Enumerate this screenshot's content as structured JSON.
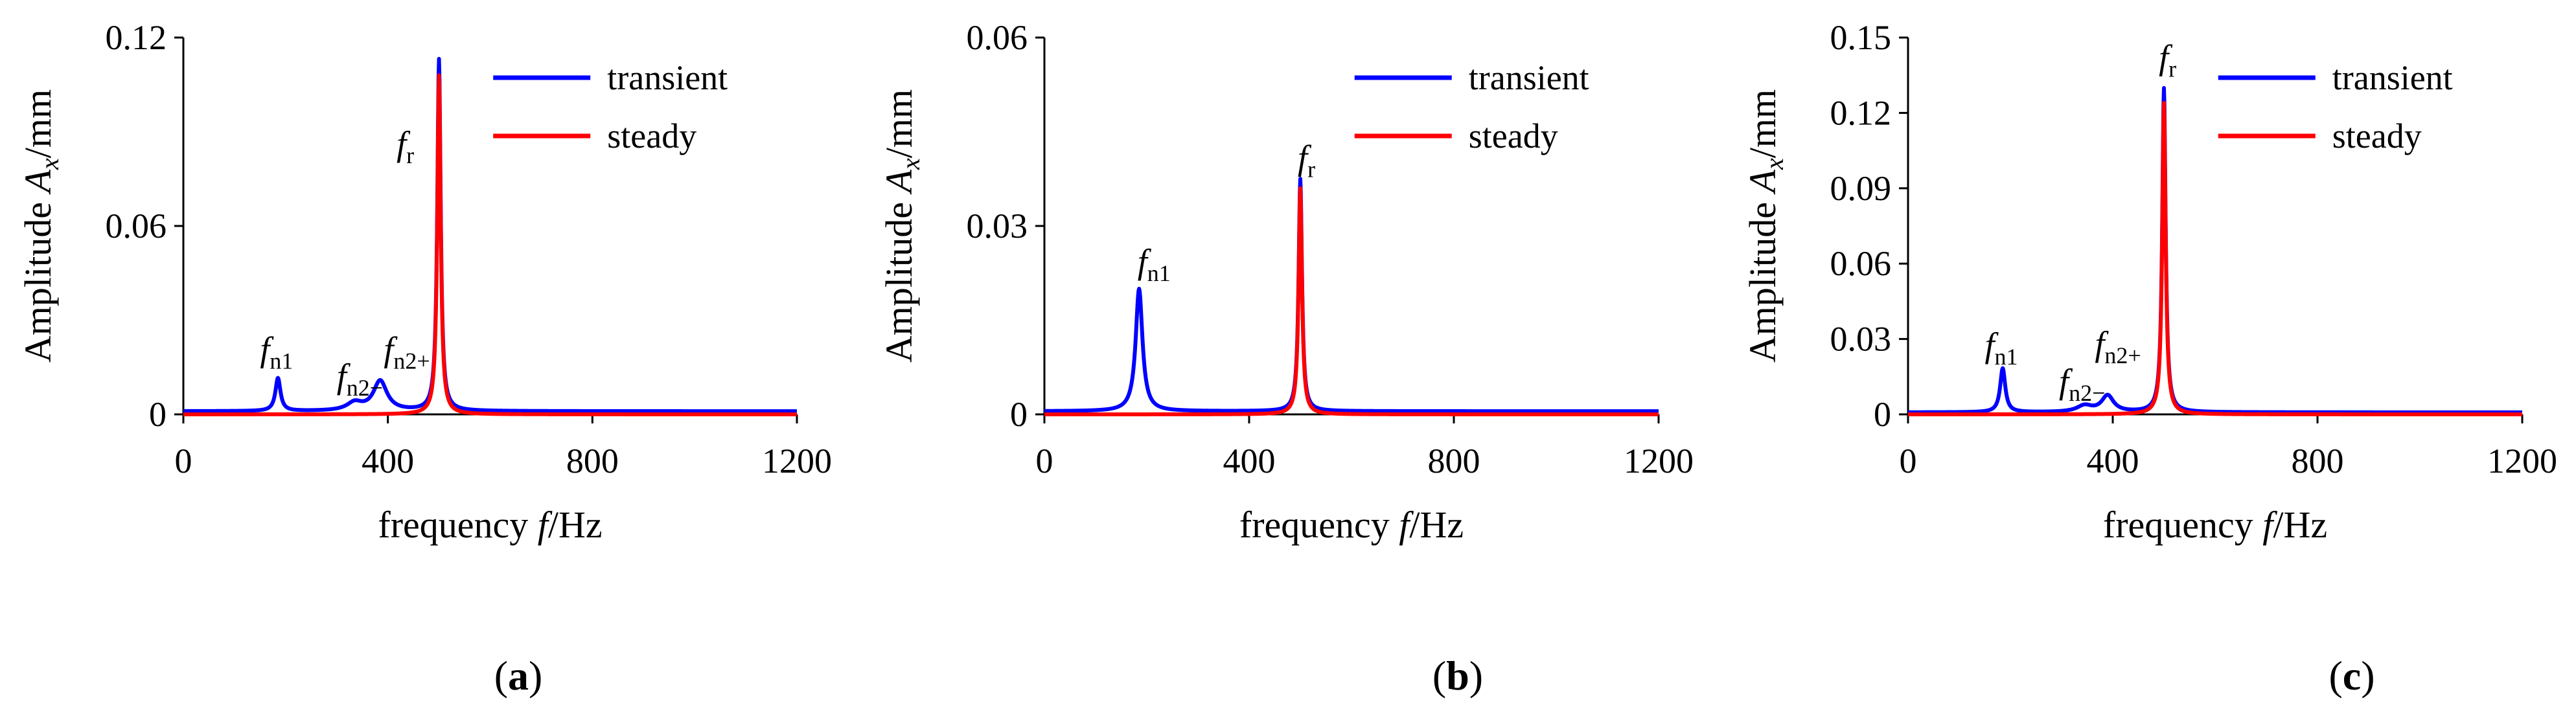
{
  "figure": {
    "panels": [
      "a",
      "b",
      "c"
    ]
  },
  "chart_data": [
    {
      "type": "line",
      "panel_label": "(a)",
      "title": "",
      "xlabel": {
        "pre": "frequency ",
        "var": "f",
        "post": "/Hz"
      },
      "ylabel": {
        "pre": "Amplitude ",
        "var": "A",
        "sub": "x",
        "post": "/mm"
      },
      "xlim": [
        0,
        1200
      ],
      "ylim": [
        0,
        0.12
      ],
      "xticks": [
        0,
        400,
        800,
        1200
      ],
      "yticks": [
        0,
        0.06,
        0.12
      ],
      "xtick_labels": [
        "0",
        "400",
        "800",
        "1200"
      ],
      "ytick_labels": [
        "0",
        "0.06",
        "0.12"
      ],
      "legend": [
        "transient",
        "steady"
      ],
      "legend_position": "top-right",
      "series": [
        {
          "name": "transient",
          "color": "#0000ff",
          "baseline": 0.001,
          "peaks": [
            {
              "f": 185,
              "a": 0.0105,
              "w": 6
            },
            {
              "f": 335,
              "a": 0.0025,
              "w": 18
            },
            {
              "f": 385,
              "a": 0.0095,
              "w": 16
            },
            {
              "f": 500,
              "a": 0.112,
              "w": 4
            }
          ]
        },
        {
          "name": "steady",
          "color": "#ff0000",
          "baseline": 0.0,
          "peaks": [
            {
              "f": 500,
              "a": 0.108,
              "w": 4
            }
          ]
        }
      ],
      "annotations": [
        {
          "base": "f",
          "sub": "n1",
          "x": 150,
          "y": 0.017
        },
        {
          "base": "f",
          "sub": "n2−",
          "x": 300,
          "y": 0.0085
        },
        {
          "base": "f",
          "sub": "n2+",
          "x": 392,
          "y": 0.017
        },
        {
          "base": "f",
          "sub": "r",
          "x": 417,
          "y": 0.0825
        }
      ]
    },
    {
      "type": "line",
      "panel_label": "(b)",
      "title": "",
      "xlabel": {
        "pre": "frequency ",
        "var": "f",
        "post": "/Hz"
      },
      "ylabel": {
        "pre": "Amplitude ",
        "var": "A",
        "sub": "x",
        "post": "/mm"
      },
      "xlim": [
        0,
        1200
      ],
      "ylim": [
        0,
        0.06
      ],
      "xticks": [
        0,
        400,
        800,
        1200
      ],
      "yticks": [
        0,
        0.03,
        0.06
      ],
      "xtick_labels": [
        "0",
        "400",
        "800",
        "1200"
      ],
      "ytick_labels": [
        "0",
        "0.03",
        "0.06"
      ],
      "legend": [
        "transient",
        "steady"
      ],
      "legend_position": "top-right",
      "series": [
        {
          "name": "transient",
          "color": "#0000ff",
          "baseline": 0.0005,
          "peaks": [
            {
              "f": 185,
              "a": 0.0195,
              "w": 8
            },
            {
              "f": 500,
              "a": 0.037,
              "w": 4
            }
          ]
        },
        {
          "name": "steady",
          "color": "#ff0000",
          "baseline": 0.0,
          "peaks": [
            {
              "f": 500,
              "a": 0.036,
              "w": 4
            }
          ]
        }
      ],
      "annotations": [
        {
          "base": "f",
          "sub": "n1",
          "x": 182,
          "y": 0.0225
        },
        {
          "base": "f",
          "sub": "r",
          "x": 495,
          "y": 0.039
        }
      ]
    },
    {
      "type": "line",
      "panel_label": "(c)",
      "title": "",
      "xlabel": {
        "pre": "frequency ",
        "var": "f",
        "post": "/Hz"
      },
      "ylabel": {
        "pre": "Amplitude ",
        "var": "A",
        "sub": "x",
        "post": "/mm"
      },
      "xlim": [
        0,
        1200
      ],
      "ylim": [
        0,
        0.15
      ],
      "xticks": [
        0,
        400,
        800,
        1200
      ],
      "yticks": [
        0,
        0.03,
        0.06,
        0.09,
        0.12,
        0.15
      ],
      "xtick_labels": [
        "0",
        "400",
        "800",
        "1200"
      ],
      "ytick_labels": [
        "0",
        "0.03",
        "0.06",
        "0.09",
        "0.12",
        "0.15"
      ],
      "legend": [
        "transient",
        "steady"
      ],
      "legend_position": "top-right",
      "series": [
        {
          "name": "transient",
          "color": "#0000ff",
          "baseline": 0.0008,
          "peaks": [
            {
              "f": 185,
              "a": 0.0175,
              "w": 6
            },
            {
              "f": 345,
              "a": 0.0025,
              "w": 18
            },
            {
              "f": 390,
              "a": 0.0065,
              "w": 14
            },
            {
              "f": 500,
              "a": 0.129,
              "w": 4
            }
          ]
        },
        {
          "name": "steady",
          "color": "#ff0000",
          "baseline": 0.0,
          "peaks": [
            {
              "f": 500,
              "a": 0.124,
              "w": 4
            }
          ]
        }
      ],
      "annotations": [
        {
          "base": "f",
          "sub": "n1",
          "x": 150,
          "y": 0.023
        },
        {
          "base": "f",
          "sub": "n2−",
          "x": 295,
          "y": 0.0085
        },
        {
          "base": "f",
          "sub": "n2+",
          "x": 365,
          "y": 0.0235
        },
        {
          "base": "f",
          "sub": "r",
          "x": 490,
          "y": 0.1375
        }
      ]
    }
  ]
}
